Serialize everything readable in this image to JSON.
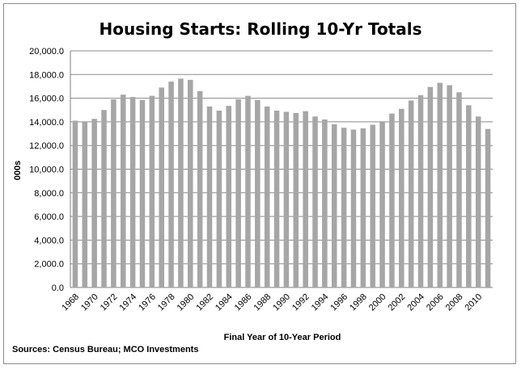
{
  "chart_data": {
    "type": "bar",
    "title": "Housing Starts: Rolling 10-Yr Totals",
    "xlabel": "Final Year of 10-Year Period",
    "ylabel": "000s",
    "source": "Sources: Census Bureau; MCO Investments",
    "ylim": [
      0,
      20000
    ],
    "yticks": [
      "0.0",
      "2,000.0",
      "4,000.0",
      "6,000.0",
      "8,000.0",
      "10,000.0",
      "12,000.0",
      "14,000.0",
      "16,000.0",
      "18,000.0",
      "20,000.0"
    ],
    "grid": true,
    "legend": "none",
    "bar_color": "#a6a6a6",
    "categories": [
      "1968",
      "1969",
      "1970",
      "1971",
      "1972",
      "1973",
      "1974",
      "1975",
      "1976",
      "1977",
      "1978",
      "1979",
      "1980",
      "1981",
      "1982",
      "1983",
      "1984",
      "1985",
      "1986",
      "1987",
      "1988",
      "1989",
      "1990",
      "1991",
      "1992",
      "1993",
      "1994",
      "1995",
      "1996",
      "1997",
      "1998",
      "1999",
      "2000",
      "2001",
      "2002",
      "2003",
      "2004",
      "2005",
      "2006",
      "2007",
      "2008",
      "2009",
      "2010",
      "2011"
    ],
    "xtick_labels": [
      "1968",
      "1970",
      "1972",
      "1974",
      "1976",
      "1978",
      "1980",
      "1982",
      "1984",
      "1986",
      "1988",
      "1990",
      "1992",
      "1994",
      "1996",
      "1998",
      "2000",
      "2002",
      "2004",
      "2006",
      "2008",
      "2010"
    ],
    "values": [
      14100,
      14000,
      14250,
      15000,
      15900,
      16300,
      16100,
      15850,
      16200,
      16900,
      17400,
      17650,
      17550,
      16600,
      15300,
      14950,
      15350,
      15900,
      16200,
      15850,
      15300,
      14950,
      14850,
      14750,
      14900,
      14450,
      14200,
      13800,
      13500,
      13350,
      13450,
      13750,
      14000,
      14700,
      15100,
      15800,
      16250,
      16950,
      17300,
      17100,
      16500,
      15400,
      14450,
      13400
    ]
  }
}
